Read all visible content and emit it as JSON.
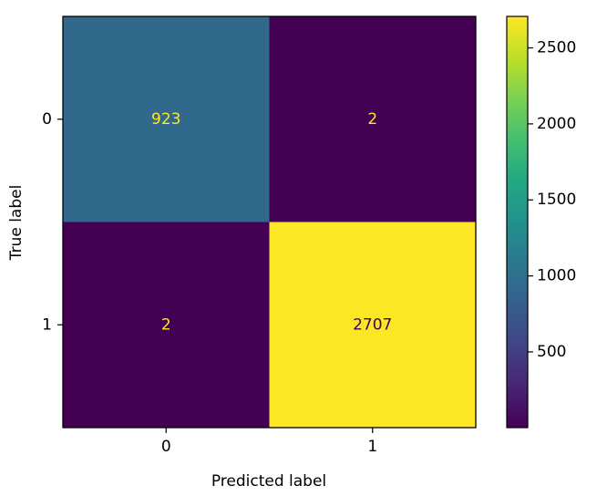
{
  "chart_data": {
    "type": "heatmap",
    "title": "",
    "xlabel": "Predicted label",
    "ylabel": "True label",
    "x_categories": [
      "0",
      "1"
    ],
    "y_categories": [
      "0",
      "1"
    ],
    "values": [
      [
        923,
        2
      ],
      [
        2,
        2707
      ]
    ],
    "cell_labels": [
      [
        "923",
        "2"
      ],
      [
        "2",
        "2707"
      ]
    ],
    "colormap": "viridis",
    "colorbar": {
      "min": 2,
      "max": 2707,
      "ticks": [
        500,
        1000,
        1500,
        2000,
        2500
      ],
      "tick_labels": [
        "500",
        "1000",
        "1500",
        "2000",
        "2500"
      ]
    },
    "label_colors": {
      "on_dark": "#fde725",
      "on_light": "#440154"
    }
  }
}
